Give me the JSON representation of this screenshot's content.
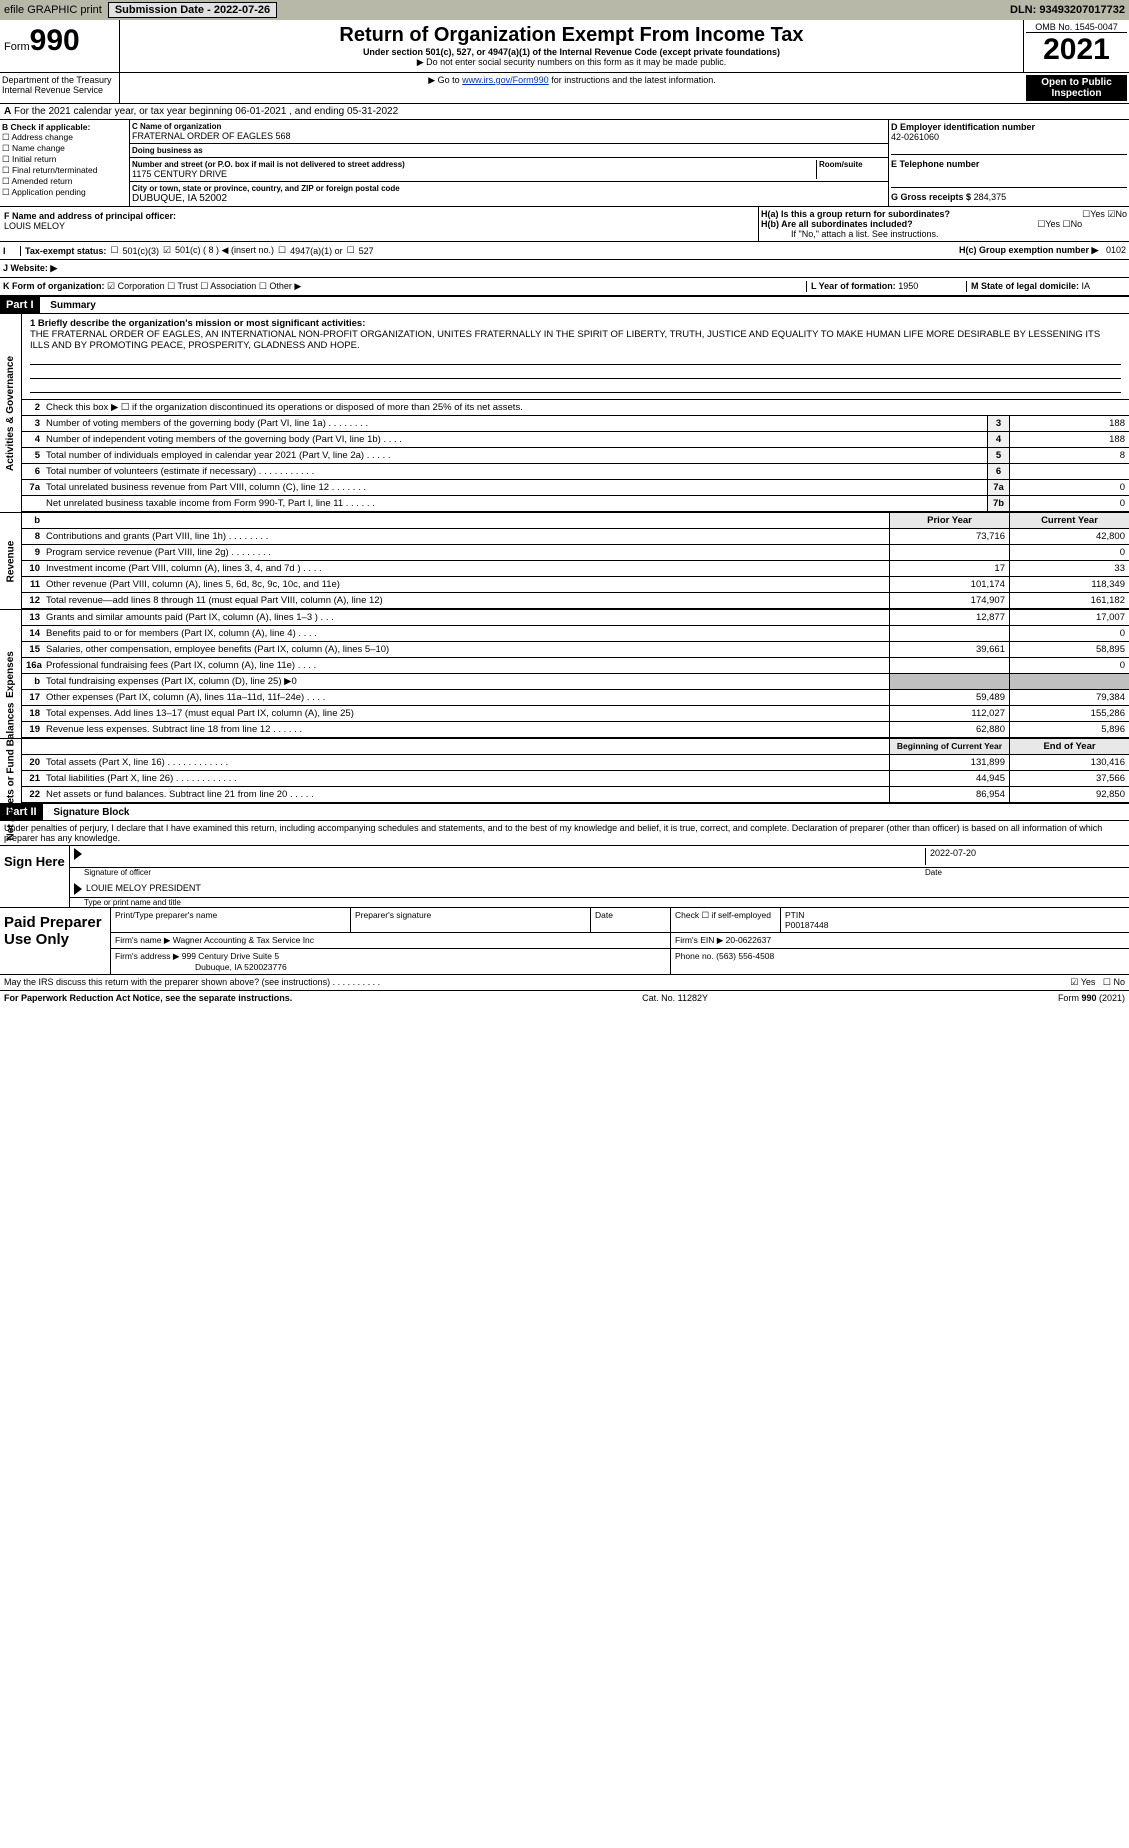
{
  "topbar": {
    "efile": "efile GRAPHIC print",
    "submit_label": "Submission Date - 2022-07-26",
    "dln": "DLN: 93493207017732"
  },
  "header": {
    "form_word": "Form",
    "form_num": "990",
    "title": "Return of Organization Exempt From Income Tax",
    "subtitle": "Under section 501(c), 527, or 4947(a)(1) of the Internal Revenue Code (except private foundations)",
    "note1": "▶ Do not enter social security numbers on this form as it may be made public.",
    "note2_pre": "▶ Go to ",
    "note2_link": "www.irs.gov/Form990",
    "note2_post": " for instructions and the latest information.",
    "omb": "OMB No. 1545-0047",
    "year": "2021",
    "public": "Open to Public Inspection",
    "dept": "Department of the Treasury",
    "irs": "Internal Revenue Service"
  },
  "line_a": "For the 2021 calendar year, or tax year beginning 06-01-2021    , and ending 05-31-2022",
  "box_b": {
    "label": "B Check if applicable:",
    "items": [
      "Address change",
      "Name change",
      "Initial return",
      "Final return/terminated",
      "Amended return",
      "Application pending"
    ]
  },
  "box_c": {
    "name_label": "C Name of organization",
    "name": "FRATERNAL ORDER OF EAGLES 568",
    "dba_label": "Doing business as",
    "dba": "",
    "addr_label": "Number and street (or P.O. box if mail is not delivered to street address)",
    "room_label": "Room/suite",
    "addr": "1175 CENTURY DRIVE",
    "city_label": "City or town, state or province, country, and ZIP or foreign postal code",
    "city": "DUBUQUE, IA  52002"
  },
  "box_d": {
    "label": "D Employer identification number",
    "val": "42-0261060"
  },
  "box_e": {
    "label": "E Telephone number",
    "val": ""
  },
  "box_g": {
    "label": "G Gross receipts $",
    "val": "284,375"
  },
  "box_f": {
    "label": "F  Name and address of principal officer:",
    "val": "LOUIS MELOY"
  },
  "box_h": {
    "h_a": "H(a)  Is this a group return for subordinates?",
    "h_b": "H(b)  Are all subordinates included?",
    "h_b_note": "If \"No,\" attach a list. See instructions.",
    "h_c": "H(c)  Group exemption number ▶",
    "h_c_val": "0102",
    "yes": "Yes",
    "no": "No"
  },
  "tax_status": {
    "label": "Tax-exempt status:",
    "opt1": "501(c)(3)",
    "opt2": "501(c) ( 8 ) ◀ (insert no.)",
    "opt3": "4947(a)(1) or",
    "opt4": "527"
  },
  "box_i": {
    "label": "I",
    "txt": ""
  },
  "box_j": {
    "label": "J  Website: ▶"
  },
  "box_k": {
    "label": "K Form of organization:",
    "opts": [
      "Corporation",
      "Trust",
      "Association",
      "Other ▶"
    ]
  },
  "box_l": {
    "label": "L Year of formation:",
    "val": "1950"
  },
  "box_m": {
    "label": "M State of legal domicile:",
    "val": "IA"
  },
  "part1": {
    "hdr": "Part I",
    "title": "Summary",
    "line1_label": "1  Briefly describe the organization's mission or most significant activities:",
    "line1": "THE FRATERNAL ORDER OF EAGLES, AN INTERNATIONAL NON-PROFIT ORGANIZATION, UNITES FRATERNALLY IN THE SPIRIT OF LIBERTY, TRUTH, JUSTICE AND EQUALITY TO MAKE HUMAN LIFE MORE DESIRABLE BY LESSENING ITS ILLS AND BY PROMOTING PEACE, PROSPERITY, GLADNESS AND HOPE.",
    "line2": "Check this box ▶ ☐  if the organization discontinued its operations or disposed of more than 25% of its net assets.",
    "gov_rows": [
      {
        "n": "3",
        "t": "Number of voting members of the governing body (Part VI, line 1a)   .    .    .    .    .    .    .    .",
        "b": "3",
        "v": "188"
      },
      {
        "n": "4",
        "t": "Number of independent voting members of the governing body (Part VI, line 1b)    .    .    .    .",
        "b": "4",
        "v": "188"
      },
      {
        "n": "5",
        "t": "Total number of individuals employed in calendar year 2021 (Part V, line 2a)   .    .    .    .    .",
        "b": "5",
        "v": "8"
      },
      {
        "n": "6",
        "t": "Total number of volunteers (estimate if necessary)    .    .    .    .    .    .    .    .    .    .    .",
        "b": "6",
        "v": ""
      },
      {
        "n": "7a",
        "t": "Total unrelated business revenue from Part VIII, column (C), line 12   .    .    .    .    .    .    .",
        "b": "7a",
        "v": "0"
      },
      {
        "n": "",
        "t": "Net unrelated business taxable income from Form 990-T, Part I, line 11   .    .    .    .    .    .",
        "b": "7b",
        "v": "0"
      }
    ],
    "col_prior": "Prior Year",
    "col_current": "Current Year",
    "rev_rows": [
      {
        "n": "8",
        "t": "Contributions and grants (Part VIII, line 1h)   .    .    .    .    .    .    .    .",
        "p": "73,716",
        "c": "42,800"
      },
      {
        "n": "9",
        "t": "Program service revenue (Part VIII, line 2g)   .    .    .    .    .    .    .    .",
        "p": "",
        "c": "0"
      },
      {
        "n": "10",
        "t": "Investment income (Part VIII, column (A), lines 3, 4, and 7d )   .    .    .    .",
        "p": "17",
        "c": "33"
      },
      {
        "n": "11",
        "t": "Other revenue (Part VIII, column (A), lines 5, 6d, 8c, 9c, 10c, and 11e)",
        "p": "101,174",
        "c": "118,349"
      },
      {
        "n": "12",
        "t": "Total revenue—add lines 8 through 11 (must equal Part VIII, column (A), line 12)",
        "p": "174,907",
        "c": "161,182"
      }
    ],
    "exp_rows": [
      {
        "n": "13",
        "t": "Grants and similar amounts paid (Part IX, column (A), lines 1–3 )   .    .    .",
        "p": "12,877",
        "c": "17,007"
      },
      {
        "n": "14",
        "t": "Benefits paid to or for members (Part IX, column (A), line 4)   .    .    .    .",
        "p": "",
        "c": "0"
      },
      {
        "n": "15",
        "t": "Salaries, other compensation, employee benefits (Part IX, column (A), lines 5–10)",
        "p": "39,661",
        "c": "58,895"
      },
      {
        "n": "16a",
        "t": "Professional fundraising fees (Part IX, column (A), line 11e)   .    .    .    .",
        "p": "",
        "c": "0"
      },
      {
        "n": "b",
        "t": "Total fundraising expenses (Part IX, column (D), line 25) ▶0",
        "p": "GRAY",
        "c": "GRAY"
      },
      {
        "n": "17",
        "t": "Other expenses (Part IX, column (A), lines 11a–11d, 11f–24e)   .    .    .    .",
        "p": "59,489",
        "c": "79,384"
      },
      {
        "n": "18",
        "t": "Total expenses. Add lines 13–17 (must equal Part IX, column (A), line 25)",
        "p": "112,027",
        "c": "155,286"
      },
      {
        "n": "19",
        "t": "Revenue less expenses. Subtract line 18 from line 12   .    .    .    .    .    .",
        "p": "62,880",
        "c": "5,896"
      }
    ],
    "col_begin": "Beginning of Current Year",
    "col_end": "End of Year",
    "net_rows": [
      {
        "n": "20",
        "t": "Total assets (Part X, line 16)   .    .    .    .    .    .    .    .    .    .    .    .",
        "p": "131,899",
        "c": "130,416"
      },
      {
        "n": "21",
        "t": "Total liabilities (Part X, line 26)   .    .    .    .    .    .    .    .    .    .    .    .",
        "p": "44,945",
        "c": "37,566"
      },
      {
        "n": "22",
        "t": "Net assets or fund balances. Subtract line 21 from line 20   .    .    .    .    .",
        "p": "86,954",
        "c": "92,850"
      }
    ],
    "side_gov": "Activities & Governance",
    "side_rev": "Revenue",
    "side_exp": "Expenses",
    "side_net": "Net Assets or Fund Balances"
  },
  "part2": {
    "hdr": "Part II",
    "title": "Signature Block",
    "decl": "Under penalties of perjury, I declare that I have examined this return, including accompanying schedules and statements, and to the best of my knowledge and belief, it is true, correct, and complete. Declaration of preparer (other than officer) is based on all information of which preparer has any knowledge."
  },
  "sign": {
    "label": "Sign Here",
    "sig_officer": "Signature of officer",
    "date": "Date",
    "date_val": "2022-07-20",
    "name": "LOUIE MELOY PRESIDENT",
    "name_label": "Type or print name and title"
  },
  "paid": {
    "label": "Paid Preparer Use Only",
    "h1": "Print/Type preparer's name",
    "h2": "Preparer's signature",
    "h3": "Date",
    "h4_pre": "Check ☐ if self-employed",
    "h5": "PTIN",
    "ptin": "P00187448",
    "firm_label": "Firm's name    ▶",
    "firm": "Wagner Accounting & Tax Service Inc",
    "ein_label": "Firm's EIN ▶",
    "ein": "20-0622637",
    "addr_label": "Firm's address ▶",
    "addr1": "999 Century Drive Suite 5",
    "addr2": "Dubuque, IA  520023776",
    "phone_label": "Phone no.",
    "phone": "(563) 556-4508"
  },
  "discuss": "May the IRS discuss this return with the preparer shown above? (see instructions)   .    .    .    .    .    .    .    .    .    .",
  "footer": {
    "left": "For Paperwork Reduction Act Notice, see the separate instructions.",
    "mid": "Cat. No. 11282Y",
    "right": "Form 990 (2021)"
  }
}
